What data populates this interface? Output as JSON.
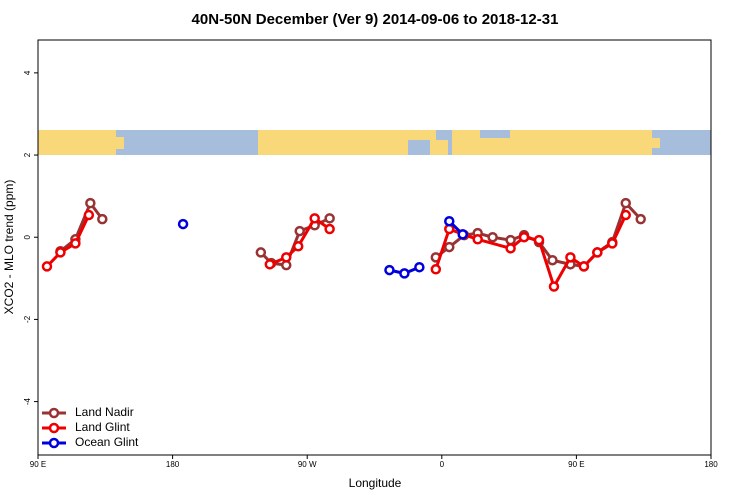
{
  "chart_data": {
    "type": "line",
    "title": "40N-50N December (Ver 9)   2014-09-06 to 2018-12-31",
    "x_label": "Longitude",
    "y_label": "XCO2 - MLO trend (ppm)",
    "xlim": [
      90,
      540
    ],
    "xticks": [
      {
        "value": 90,
        "label": "90 E"
      },
      180,
      {
        "value": 270,
        "label": "90 W"
      },
      {
        "value": 360,
        "label": "0"
      },
      {
        "value": 450,
        "label": "90 E"
      },
      {
        "value": 540,
        "label": "180"
      }
    ],
    "ylim": [
      -5.3,
      4.8
    ],
    "yticks": [
      -4,
      -2,
      0,
      2,
      4
    ],
    "legend": "bottom-left",
    "series": [
      {
        "name": "Land Nadir",
        "color": "#993333",
        "x": [
          105,
          115,
          125,
          133,
          200,
          239,
          246,
          256,
          265,
          275,
          285,
          320,
          356,
          365,
          375,
          384,
          394,
          406,
          415,
          425,
          434,
          446,
          455,
          464,
          474,
          483,
          493
        ],
        "values": [
          -0.34,
          -0.05,
          0.83,
          0.44,
          null,
          -0.37,
          -0.63,
          -0.68,
          0.15,
          0.29,
          0.46,
          null,
          -0.49,
          -0.24,
          0.05,
          0.1,
          0,
          -0.07,
          0.05,
          -0.12,
          -0.56,
          -0.66,
          -0.71,
          -0.37,
          -0.12,
          0.83,
          0.44
        ]
      },
      {
        "name": "Land Glint",
        "color": "#ee0000",
        "x": [
          96,
          105,
          115,
          124,
          200,
          245,
          256,
          264,
          275,
          285,
          320,
          356,
          365,
          374,
          384,
          406,
          415,
          425,
          435,
          446,
          455,
          464,
          474,
          483
        ],
        "values": [
          -0.71,
          -0.37,
          -0.15,
          0.54,
          null,
          -0.66,
          -0.49,
          -0.22,
          0.46,
          0.2,
          null,
          -0.78,
          0.2,
          0.07,
          -0.05,
          -0.27,
          0,
          -0.07,
          -1.2,
          -0.49,
          -0.71,
          -0.37,
          -0.15,
          0.54
        ]
      },
      {
        "name": "Ocean Glint",
        "color": "#0000dd",
        "x": [
          187,
          250,
          325,
          335,
          345,
          360,
          365,
          374
        ],
        "values": [
          0.32,
          null,
          -0.8,
          -0.88,
          -0.73,
          null,
          0.39,
          0.07
        ]
      }
    ]
  }
}
